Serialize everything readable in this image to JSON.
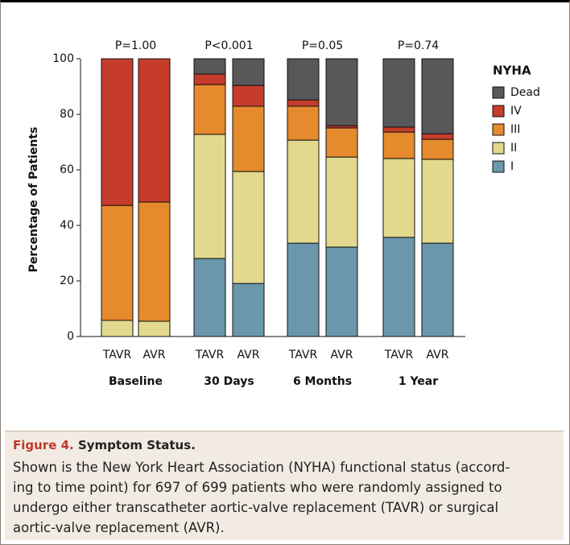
{
  "chart_data": {
    "type": "stacked-bar",
    "y_label": "Percentage of Patients",
    "categories": [
      "TAVR",
      "AVR",
      "TAVR",
      "AVR",
      "TAVR",
      "AVR",
      "TAVR",
      "AVR"
    ],
    "groups": [
      {
        "name": "Baseline",
        "annotation": "P=1.00"
      },
      {
        "name": "30 Days",
        "annotation": "P<0.001"
      },
      {
        "name": "6 Months",
        "annotation": "P=0.05"
      },
      {
        "name": "1 Year",
        "annotation": "P=0.74"
      }
    ],
    "series": [
      {
        "name": "I",
        "color": "#6a97ab",
        "values": [
          0,
          0,
          28.1,
          19.1,
          33.6,
          32.2,
          35.7,
          33.6
        ]
      },
      {
        "name": "II",
        "color": "#e2d98e",
        "values": [
          5.8,
          5.5,
          44.7,
          40.3,
          37.1,
          32.4,
          28.4,
          30.2
        ]
      },
      {
        "name": "III",
        "color": "#e58a2d",
        "values": [
          41.4,
          42.9,
          17.9,
          23.5,
          12.2,
          10.5,
          9.5,
          7.2
        ]
      },
      {
        "name": "IV",
        "color": "#c63c2b",
        "values": [
          52.8,
          51.6,
          3.8,
          7.5,
          2.3,
          0.8,
          1.8,
          2.0
        ]
      },
      {
        "name": "Dead",
        "color": "#58585a",
        "values": [
          0,
          0,
          5.5,
          9.6,
          14.8,
          24.1,
          24.6,
          27.0
        ]
      }
    ],
    "legend_title": "NYHA",
    "legend": "right",
    "ylim": [
      0,
      100
    ],
    "yticks": [
      0,
      20,
      40,
      60,
      80,
      100
    ],
    "grid": false
  },
  "caption": {
    "figure": "Figure 4.",
    "title": "Symptom Status.",
    "lines": [
      "Shown is the New York Heart Association (NYHA) functional status (accord-",
      "ing to time point) for 697 of 699 patients who were randomly assigned to",
      "undergo either transcatheter aortic-valve replacement (TAVR) or surgical",
      "aortic-valve replacement (AVR)."
    ]
  }
}
